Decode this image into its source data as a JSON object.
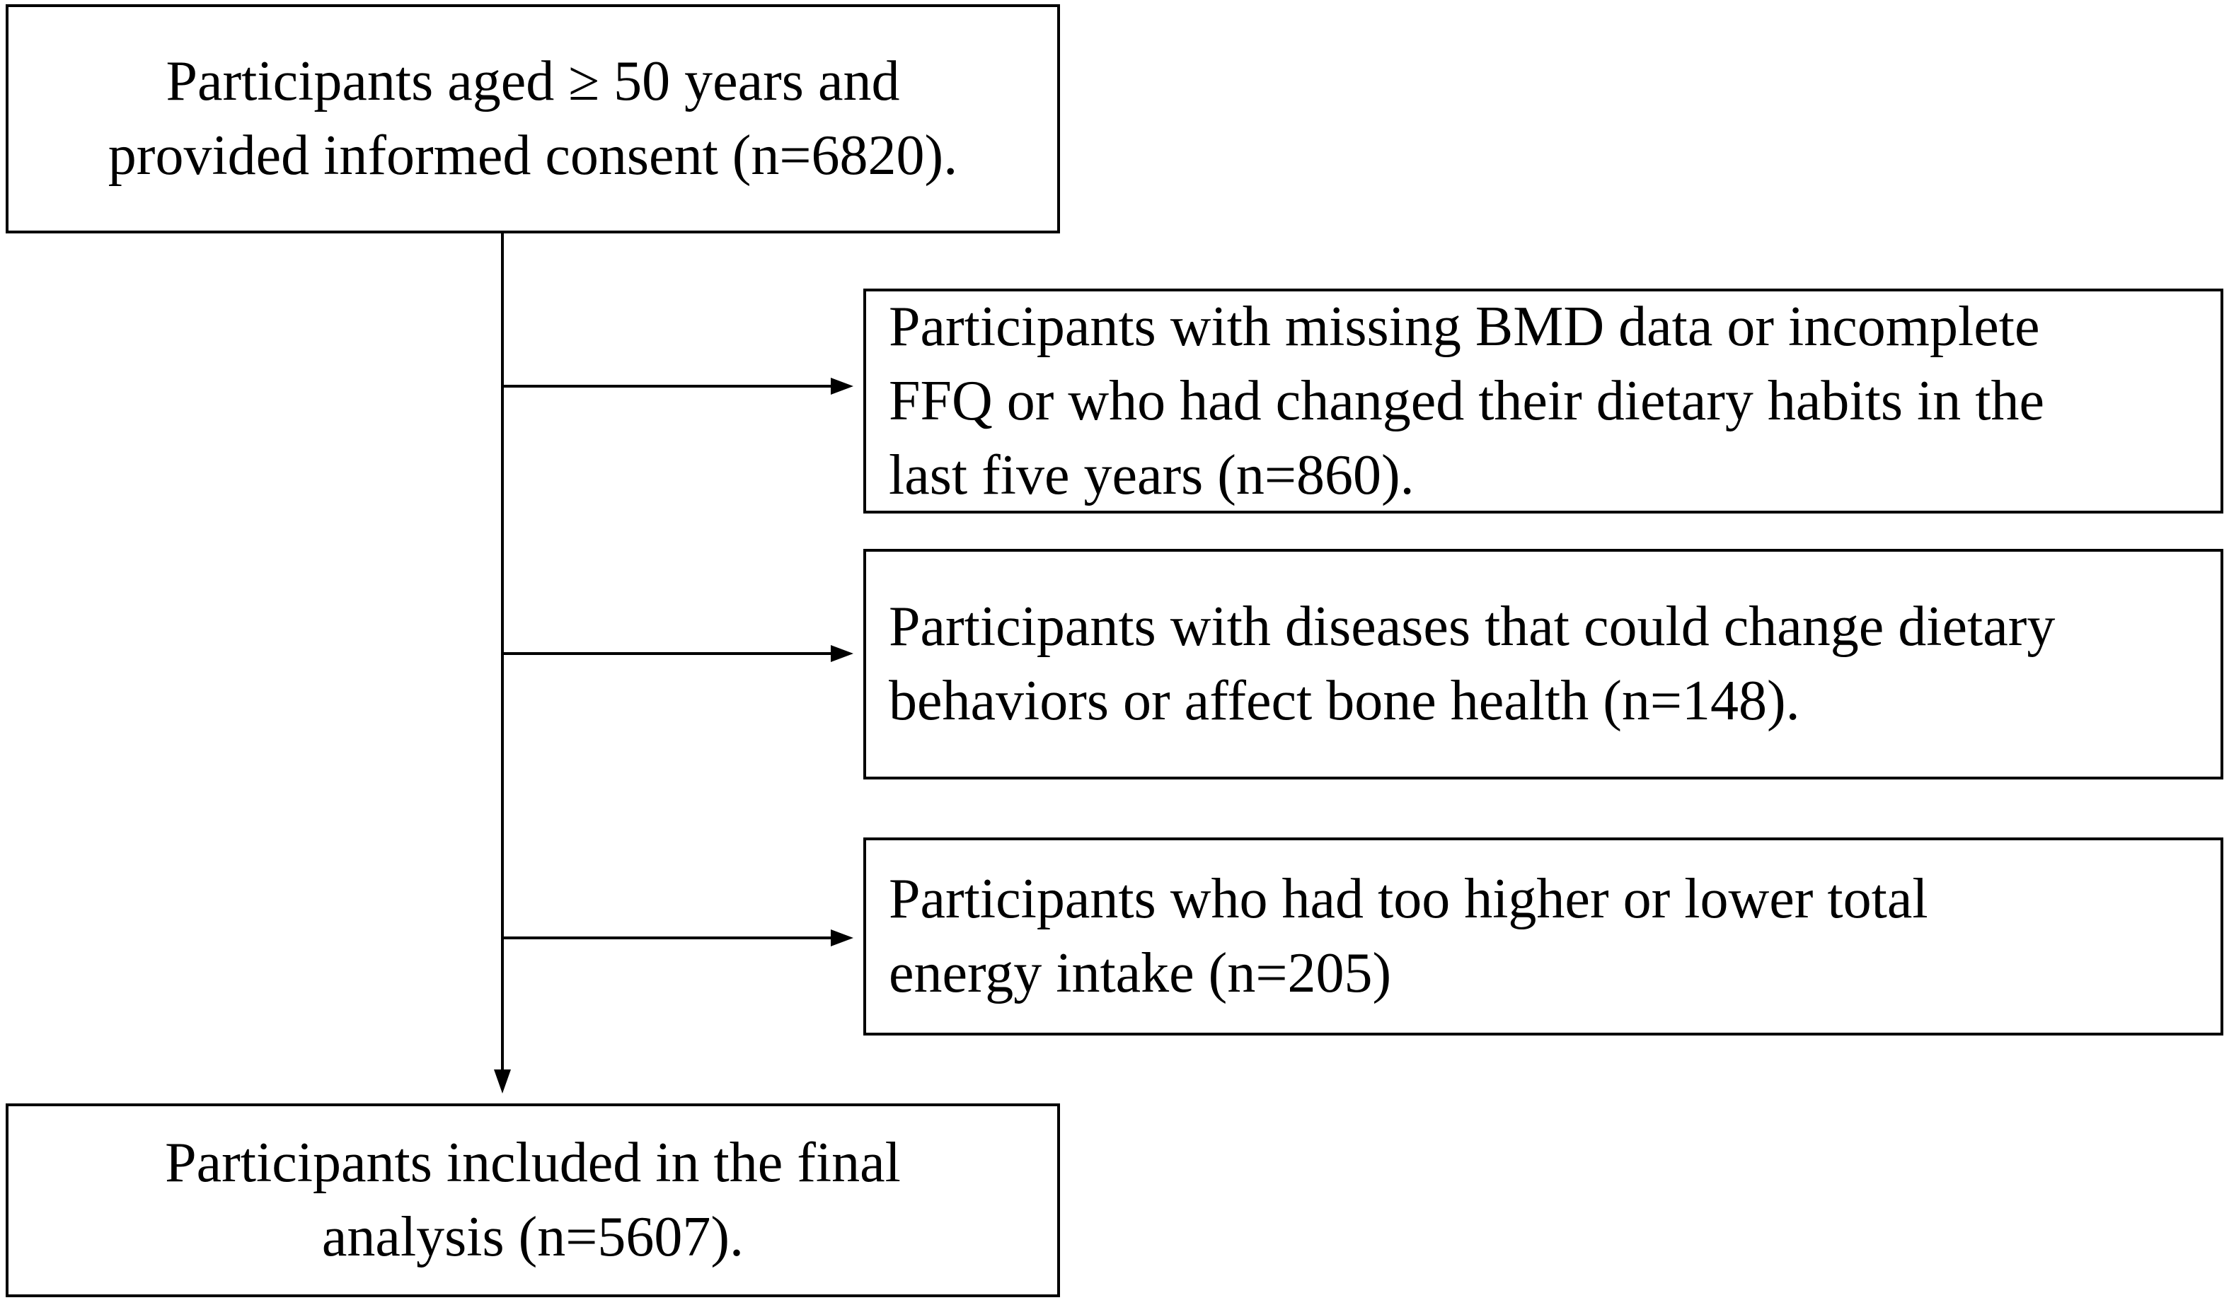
{
  "flowchart": {
    "start": {
      "lines": [
        "Participants aged ≥ 50 years and",
        "provided informed consent (n=6820)."
      ]
    },
    "exclusions": [
      {
        "lines": [
          "Participants with missing BMD data or incomplete",
          "FFQ or who had changed their dietary habits in the",
          "last five years (n=860)."
        ]
      },
      {
        "lines": [
          "Participants with diseases that could change dietary",
          "behaviors or affect bone health (n=148)."
        ]
      },
      {
        "lines": [
          "Participants who had too higher or lower total",
          "energy intake (n=205)"
        ]
      }
    ],
    "final": {
      "lines": [
        "Participants included in the final",
        "analysis (n=5607)."
      ]
    }
  }
}
